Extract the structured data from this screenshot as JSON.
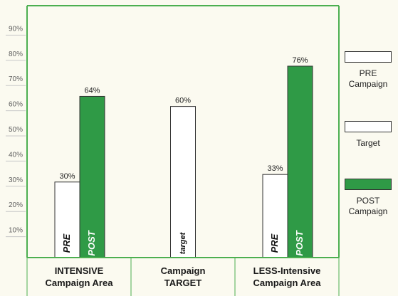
{
  "chart_data": {
    "type": "bar",
    "title": "",
    "xlabel": "",
    "ylabel": "",
    "ylim": [
      0,
      100
    ],
    "y_ticks": [
      "10%",
      "20%",
      "30%",
      "40%",
      "50%",
      "60%",
      "70%",
      "80%",
      "90%"
    ],
    "grid": true,
    "legend_placement": "right",
    "categories": [
      {
        "line1": "INTENSIVE",
        "line2": "Campaign Area"
      },
      {
        "line1": "Campaign",
        "line2": "TARGET"
      },
      {
        "line1": "LESS-Intensive",
        "line2": "Campaign Area"
      }
    ],
    "bars": [
      {
        "category": 0,
        "series": "pre",
        "value": 30,
        "value_label": "30%",
        "inner_label": "PRE"
      },
      {
        "category": 0,
        "series": "post",
        "value": 64,
        "value_label": "64%",
        "inner_label": "POST"
      },
      {
        "category": 1,
        "series": "target",
        "value": 60,
        "value_label": "60%",
        "inner_label": "target"
      },
      {
        "category": 2,
        "series": "pre",
        "value": 33,
        "value_label": "33%",
        "inner_label": "PRE"
      },
      {
        "category": 2,
        "series": "post",
        "value": 76,
        "value_label": "76%",
        "inner_label": "POST"
      }
    ],
    "legend": [
      {
        "series": "pre",
        "line1": "PRE",
        "line2": "Campaign"
      },
      {
        "series": "target",
        "line1": "Target",
        "line2": ""
      },
      {
        "series": "post",
        "line1": "POST",
        "line2": "Campaign"
      }
    ],
    "colors": {
      "pre": "#ffffff",
      "target": "#ffffff",
      "post": "#2f9a46",
      "axis": "#4caf50",
      "grid": "#c8c8c8"
    }
  }
}
